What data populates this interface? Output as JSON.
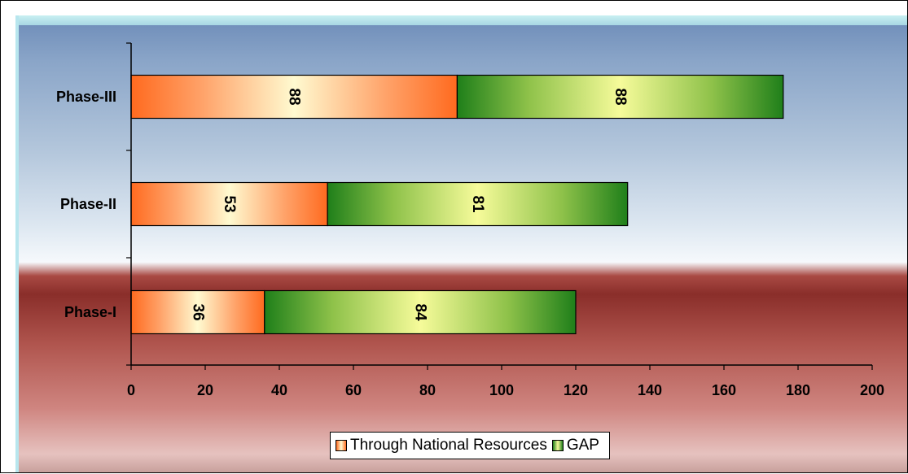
{
  "chart_data": {
    "type": "bar",
    "orientation": "horizontal",
    "stacked": true,
    "categories": [
      "Phase-I",
      "Phase-II",
      "Phase-III"
    ],
    "series": [
      {
        "name": "Through National Resources",
        "values": [
          36,
          53,
          88
        ],
        "color": "#ff6a1f"
      },
      {
        "name": "GAP",
        "values": [
          84,
          81,
          88
        ],
        "color": "#1f7f1a"
      }
    ],
    "xlim": [
      0,
      200
    ],
    "xticks": [
      "0",
      "20",
      "40",
      "60",
      "80",
      "100",
      "120",
      "140",
      "160",
      "180",
      "200"
    ],
    "title": "",
    "xlabel": "",
    "ylabel": "",
    "grid": false,
    "legend_position": "bottom"
  }
}
